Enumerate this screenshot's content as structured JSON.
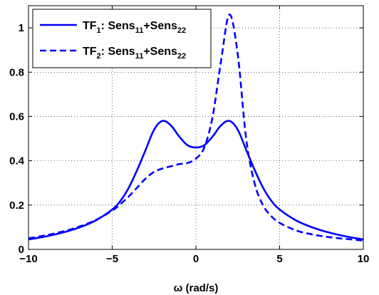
{
  "chart_data": {
    "type": "line",
    "title": "",
    "xlabel": "ω (rad/s)",
    "ylabel": "",
    "xlim": [
      -10,
      10
    ],
    "ylim": [
      0,
      1.1
    ],
    "xticks": [
      -10,
      -5,
      0,
      5,
      10
    ],
    "yticks": [
      0,
      0.2,
      0.4,
      0.6,
      0.8,
      1
    ],
    "xtick_labels": [
      "−10",
      "−5",
      "0",
      "5",
      "10"
    ],
    "ytick_labels": [
      "0",
      "0.2",
      "0.4",
      "0.6",
      "0.8",
      "1"
    ],
    "grid": true,
    "legend_position": "top-left",
    "series": [
      {
        "name": "TF1: Sens11+Sens22",
        "name_parts": [
          "TF",
          "1",
          ": Sens",
          "11",
          "+Sens",
          "22"
        ],
        "style": "solid",
        "color": "#0000ff",
        "x": [
          -10,
          -9,
          -8,
          -7,
          -6,
          -5,
          -4.5,
          -4,
          -3.5,
          -3,
          -2.5,
          -2,
          -1.5,
          -1,
          -0.5,
          0,
          0.5,
          1,
          1.5,
          2,
          2.5,
          3,
          3.5,
          4,
          4.5,
          5,
          6,
          7,
          8,
          9,
          10
        ],
        "y": [
          0.045,
          0.058,
          0.075,
          0.098,
          0.13,
          0.18,
          0.22,
          0.28,
          0.36,
          0.45,
          0.54,
          0.58,
          0.56,
          0.51,
          0.47,
          0.46,
          0.47,
          0.51,
          0.56,
          0.58,
          0.54,
          0.45,
          0.36,
          0.28,
          0.22,
          0.18,
          0.13,
          0.098,
          0.075,
          0.058,
          0.045
        ]
      },
      {
        "name": "TF2: Sens11+Sens22",
        "name_parts": [
          "TF",
          "2",
          ": Sens",
          "11",
          "+Sens",
          "22"
        ],
        "style": "dashed",
        "color": "#0000ff",
        "x": [
          -10,
          -9,
          -8,
          -7,
          -6,
          -5,
          -4.5,
          -4,
          -3.5,
          -3,
          -2.5,
          -2,
          -1.5,
          -1,
          -0.5,
          0,
          0.5,
          1,
          1.5,
          2,
          2.5,
          3,
          3.5,
          4,
          4.5,
          5,
          6,
          7,
          8,
          9,
          10
        ],
        "y": [
          0.05,
          0.063,
          0.08,
          0.102,
          0.132,
          0.175,
          0.205,
          0.24,
          0.28,
          0.32,
          0.35,
          0.365,
          0.375,
          0.385,
          0.39,
          0.41,
          0.46,
          0.6,
          0.85,
          1.06,
          0.88,
          0.5,
          0.3,
          0.2,
          0.15,
          0.12,
          0.085,
          0.067,
          0.055,
          0.047,
          0.04
        ]
      }
    ]
  }
}
